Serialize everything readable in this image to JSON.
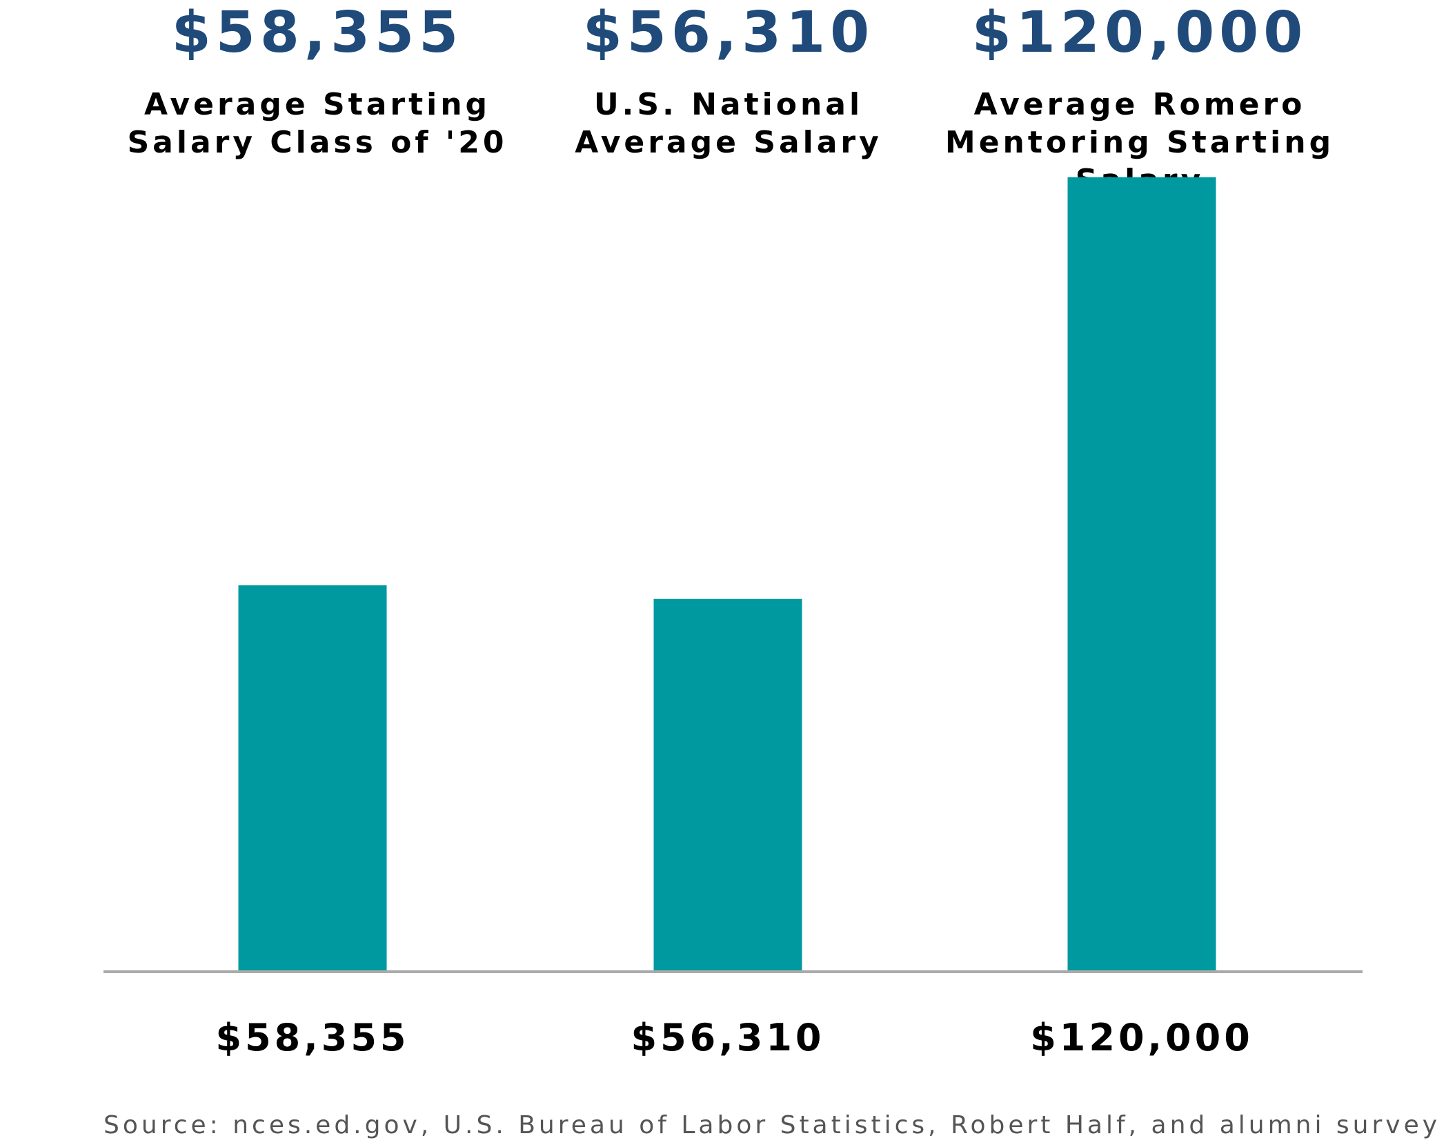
{
  "chart_data": {
    "type": "bar",
    "categories": [
      "Average Starting Salary Class of '20",
      "U.S. National Average Salary",
      "Average Romero Mentoring Starting Salary"
    ],
    "category_lines": [
      [
        "Average Starting",
        "Salary Class of '20"
      ],
      [
        "U.S. National",
        "Average Salary"
      ],
      [
        "Average Romero",
        "Mentoring Starting",
        "Salary"
      ]
    ],
    "values": [
      58355,
      56310,
      120000
    ],
    "headline_labels": [
      "$58,355",
      "$56,310",
      "$120,000"
    ],
    "data_labels": [
      "$58,355",
      "$56,310",
      "$120,000"
    ],
    "ylim": [
      0,
      128000
    ],
    "grid": false,
    "legend": "none",
    "colors": {
      "bar": "#00999f",
      "headline": "#1f4a7a",
      "baseline": "#aaaaaa",
      "text": "#000000",
      "source": "#555555"
    }
  },
  "source_note": "Source: nces.ed.gov, U.S. Bureau of Labor Statistics, Robert Half, and alumni survey"
}
